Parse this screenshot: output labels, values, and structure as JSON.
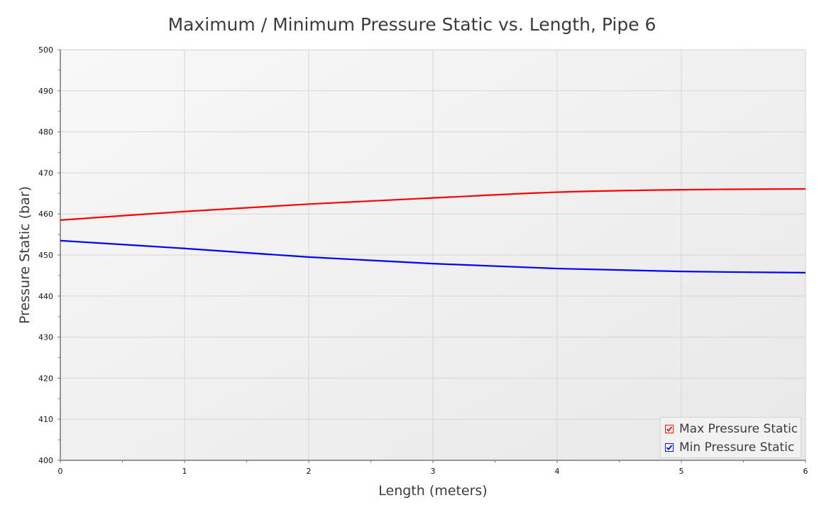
{
  "chart_data": {
    "type": "line",
    "title": "Maximum / Minimum Pressure Static vs. Length, Pipe 6",
    "xlabel": "Length (meters)",
    "ylabel": "Pressure Static (bar)",
    "xlim": [
      0,
      6
    ],
    "ylim": [
      400,
      500
    ],
    "x_ticks": [
      "0",
      "1",
      "2",
      "3",
      "4",
      "5",
      "6"
    ],
    "y_ticks": [
      "400",
      "410",
      "420",
      "430",
      "440",
      "450",
      "460",
      "470",
      "480",
      "490",
      "500"
    ],
    "grid": true,
    "legend_position": "lower right",
    "x": [
      0,
      1,
      2,
      3,
      4,
      5,
      6
    ],
    "series": [
      {
        "name": "Max Pressure Static",
        "color": "#ff0000",
        "values": [
          458.5,
          460.6,
          462.4,
          463.9,
          465.3,
          465.9,
          466.1
        ]
      },
      {
        "name": "Min Pressure Static",
        "color": "#0000ff",
        "values": [
          453.5,
          451.6,
          449.5,
          447.9,
          446.7,
          446.0,
          445.7
        ]
      }
    ]
  },
  "legend": {
    "items": [
      {
        "label": "Max Pressure Static",
        "color": "#ff0000",
        "checked": true
      },
      {
        "label": "Min Pressure Static",
        "color": "#0000ff",
        "checked": true
      }
    ]
  }
}
